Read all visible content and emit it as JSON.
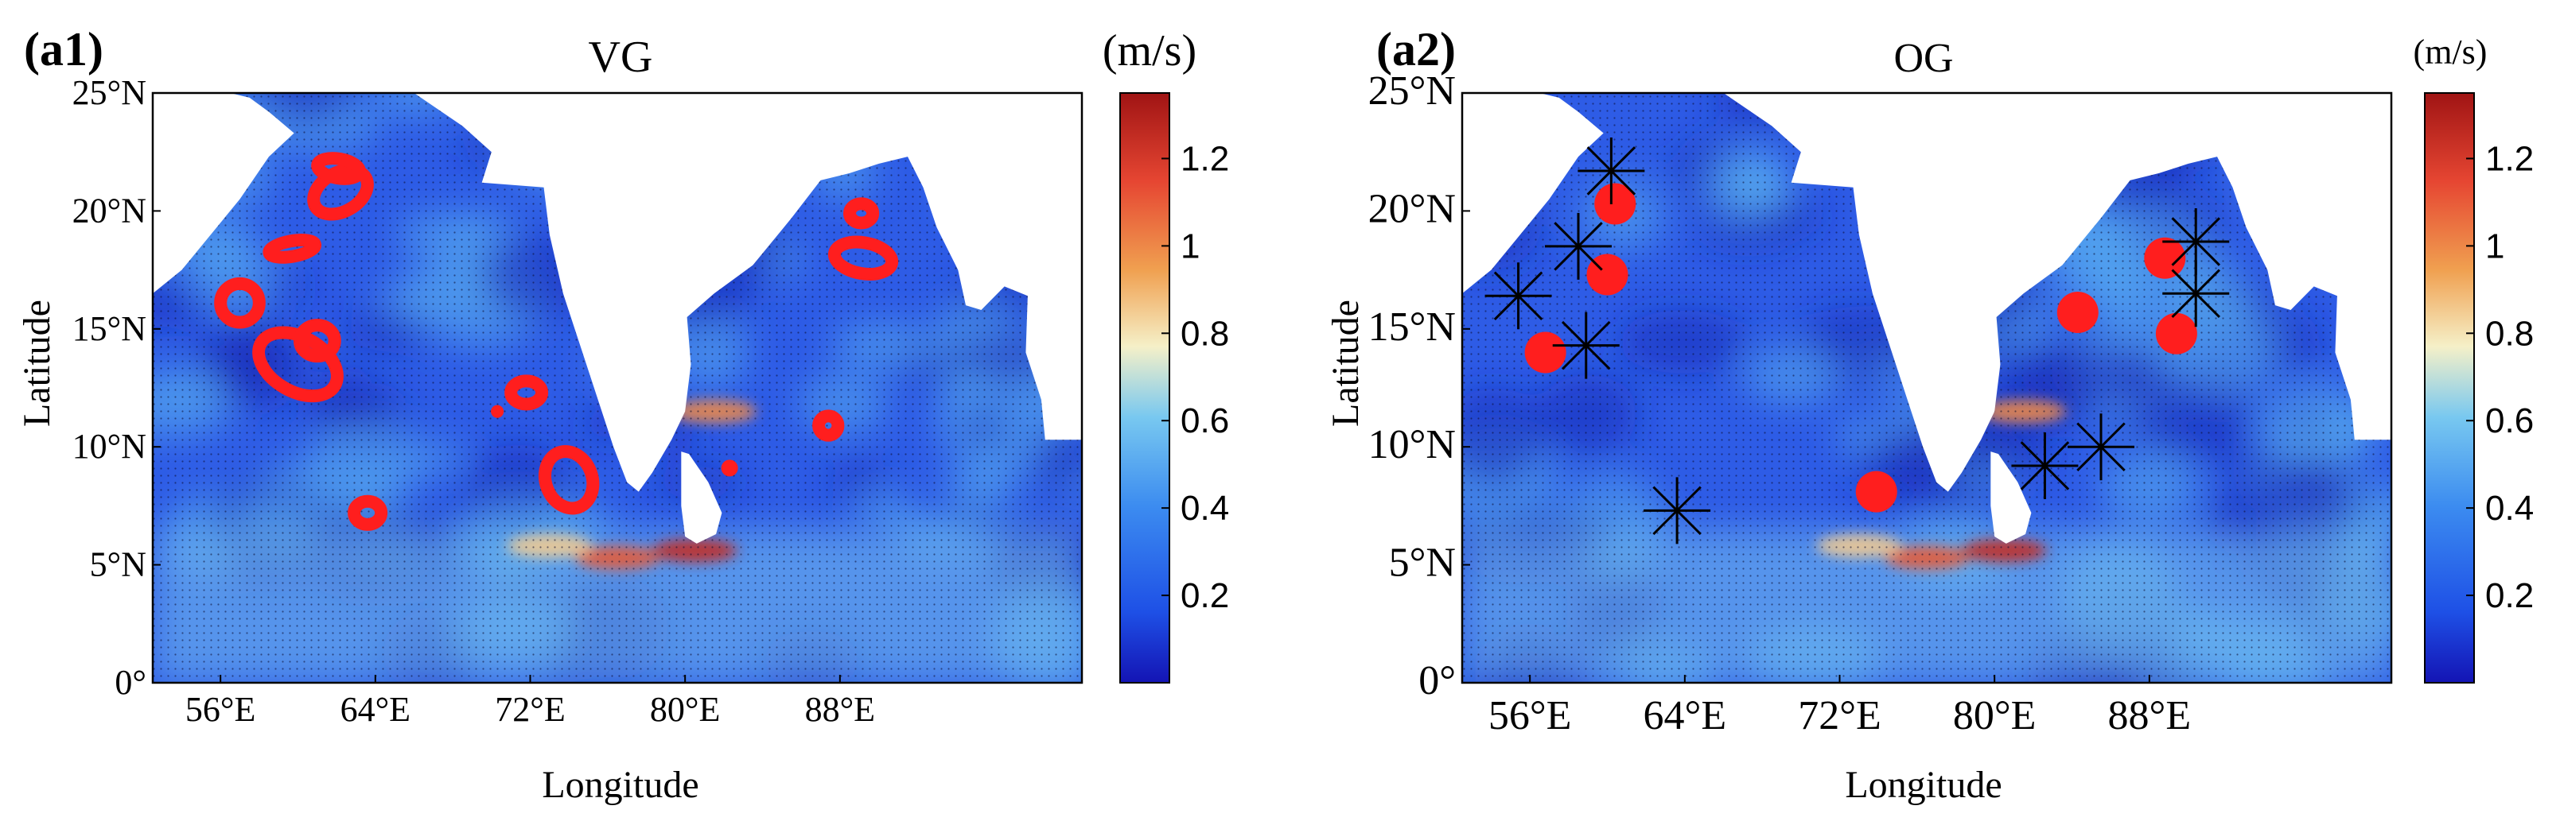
{
  "chart_data": [
    {
      "type": "heatmap",
      "panel_label": "(a1)",
      "title": "VG",
      "xlabel": "Longitude",
      "ylabel": "Latitude",
      "xlim": [
        52.5,
        100.5
      ],
      "ylim": [
        0,
        25
      ],
      "x_ticks": [
        56,
        64,
        72,
        80,
        88
      ],
      "x_tick_labels": [
        "56°E",
        "64°E",
        "72°E",
        "80°E",
        "88°E"
      ],
      "y_ticks": [
        0,
        5,
        10,
        15,
        20,
        25
      ],
      "y_tick_labels": [
        "0°",
        "5°N",
        "10°N",
        "15°N",
        "20°N",
        "25°N"
      ],
      "colorbar": {
        "label": "(m/s)",
        "range": [
          0,
          1.35
        ],
        "ticks": [
          0.2,
          0.4,
          0.6,
          0.8,
          1,
          1.2
        ],
        "tick_labels": [
          "0.2",
          "0.4",
          "0.6",
          "0.8",
          "1",
          "1.2"
        ],
        "colors": [
          "#1414b4",
          "#1e50e6",
          "#3c8cf0",
          "#78c8f0",
          "#f5f0c8",
          "#f0a050",
          "#e64632",
          "#a01414"
        ]
      },
      "speed_hotspots": [
        {
          "lon": 76.5,
          "lat": 5.3,
          "speed": 1.1
        },
        {
          "lon": 80.5,
          "lat": 5.6,
          "speed": 1.25
        },
        {
          "lon": 73.0,
          "lat": 5.8,
          "speed": 0.85
        },
        {
          "lon": 81.5,
          "lat": 11.5,
          "speed": 1.0
        }
      ],
      "eddies": [
        {
          "lon": 60.0,
          "lat": 13.5,
          "rx": 2.2,
          "ry": 1.4,
          "rot": 30
        },
        {
          "lon": 61.0,
          "lat": 14.5,
          "rx": 0.9,
          "ry": 0.8,
          "rot": 0
        },
        {
          "lon": 57.0,
          "lat": 16.1,
          "rx": 1.0,
          "ry": 1.0,
          "rot": 0
        },
        {
          "lon": 62.2,
          "lat": 20.8,
          "rx": 1.5,
          "ry": 1.0,
          "rot": -30
        },
        {
          "lon": 62.1,
          "lat": 21.8,
          "rx": 1.1,
          "ry": 0.5,
          "rot": 10
        },
        {
          "lon": 59.7,
          "lat": 18.4,
          "rx": 1.2,
          "ry": 0.4,
          "rot": -10
        },
        {
          "lon": 63.6,
          "lat": 7.2,
          "rx": 0.7,
          "ry": 0.6,
          "rot": 0
        },
        {
          "lon": 71.8,
          "lat": 12.3,
          "rx": 0.8,
          "ry": 0.6,
          "rot": 0
        },
        {
          "lon": 70.3,
          "lat": 11.5,
          "rx": 0.25,
          "ry": 0.25,
          "rot": 0
        },
        {
          "lon": 74.0,
          "lat": 8.6,
          "rx": 1.2,
          "ry": 1.5,
          "rot": -20
        },
        {
          "lon": 82.3,
          "lat": 9.1,
          "rx": 0.35,
          "ry": 0.35,
          "rot": 0
        },
        {
          "lon": 87.4,
          "lat": 10.9,
          "rx": 0.5,
          "ry": 0.5,
          "rot": 0
        },
        {
          "lon": 89.2,
          "lat": 18.0,
          "rx": 1.5,
          "ry": 0.8,
          "rot": 10
        },
        {
          "lon": 89.1,
          "lat": 19.9,
          "rx": 0.6,
          "ry": 0.5,
          "rot": 0
        }
      ]
    },
    {
      "type": "heatmap",
      "panel_label": "(a2)",
      "title": "OG",
      "xlabel": "Longitude",
      "ylabel": "Latitude",
      "xlim": [
        52.5,
        100.5
      ],
      "ylim": [
        0,
        25
      ],
      "x_ticks": [
        56,
        64,
        72,
        80,
        88
      ],
      "x_tick_labels": [
        "56°E",
        "64°E",
        "72°E",
        "80°E",
        "88°E"
      ],
      "y_ticks": [
        0,
        5,
        10,
        15,
        20,
        25
      ],
      "y_tick_labels": [
        "0°",
        "5°N",
        "10°N",
        "15°N",
        "20°N",
        "25°N"
      ],
      "colorbar": {
        "label": "(m/s)",
        "range": [
          0,
          1.35
        ],
        "ticks": [
          0.2,
          0.4,
          0.6,
          0.8,
          1,
          1.2
        ],
        "tick_labels": [
          "0.2",
          "0.4",
          "0.6",
          "0.8",
          "1",
          "1.2"
        ],
        "colors": [
          "#1414b4",
          "#1e50e6",
          "#3c8cf0",
          "#78c8f0",
          "#f5f0c8",
          "#f0a050",
          "#e64632",
          "#a01414"
        ]
      },
      "speed_hotspots": [
        {
          "lon": 76.5,
          "lat": 5.3,
          "speed": 1.1
        },
        {
          "lon": 80.5,
          "lat": 5.6,
          "speed": 1.25
        },
        {
          "lon": 73.0,
          "lat": 5.8,
          "speed": 0.85
        },
        {
          "lon": 81.5,
          "lat": 11.5,
          "speed": 1.0
        }
      ],
      "dots": [
        {
          "lon": 60.4,
          "lat": 20.3
        },
        {
          "lon": 60.0,
          "lat": 17.3
        },
        {
          "lon": 56.8,
          "lat": 14.0
        },
        {
          "lon": 73.9,
          "lat": 8.1
        },
        {
          "lon": 84.3,
          "lat": 15.7
        },
        {
          "lon": 88.8,
          "lat": 18.0
        },
        {
          "lon": 89.4,
          "lat": 14.8
        }
      ],
      "stars": [
        {
          "lon": 60.2,
          "lat": 21.7
        },
        {
          "lon": 58.5,
          "lat": 18.5
        },
        {
          "lon": 55.4,
          "lat": 16.4
        },
        {
          "lon": 58.9,
          "lat": 14.3
        },
        {
          "lon": 63.6,
          "lat": 7.3
        },
        {
          "lon": 82.6,
          "lat": 9.2
        },
        {
          "lon": 85.5,
          "lat": 10.0
        },
        {
          "lon": 90.4,
          "lat": 18.7
        },
        {
          "lon": 90.4,
          "lat": 16.5
        }
      ]
    }
  ]
}
